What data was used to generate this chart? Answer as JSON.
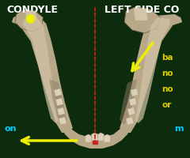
{
  "bg_color": "#0d2b0d",
  "title_left": "CONDYLE",
  "title_right": "LEFT SIDE CO",
  "title_color": "#ffffff",
  "title_fontsize": 9,
  "label_on": "on",
  "label_m": "m",
  "label_on_color": "#00ccff",
  "label_m_color": "#00ccff",
  "label_ba": "ba",
  "label_no1": "no",
  "label_no2": "no",
  "label_or": "or",
  "label_right_color": "#ddcc00",
  "dashed_line_color": "#cc2222",
  "arrow_color": "#eeee00",
  "bone_light": "#d4c4a8",
  "bone_mid": "#b8a888",
  "bone_dark": "#8a7860",
  "bone_shadow": "#6a5840",
  "dot_color": "#eeee00"
}
